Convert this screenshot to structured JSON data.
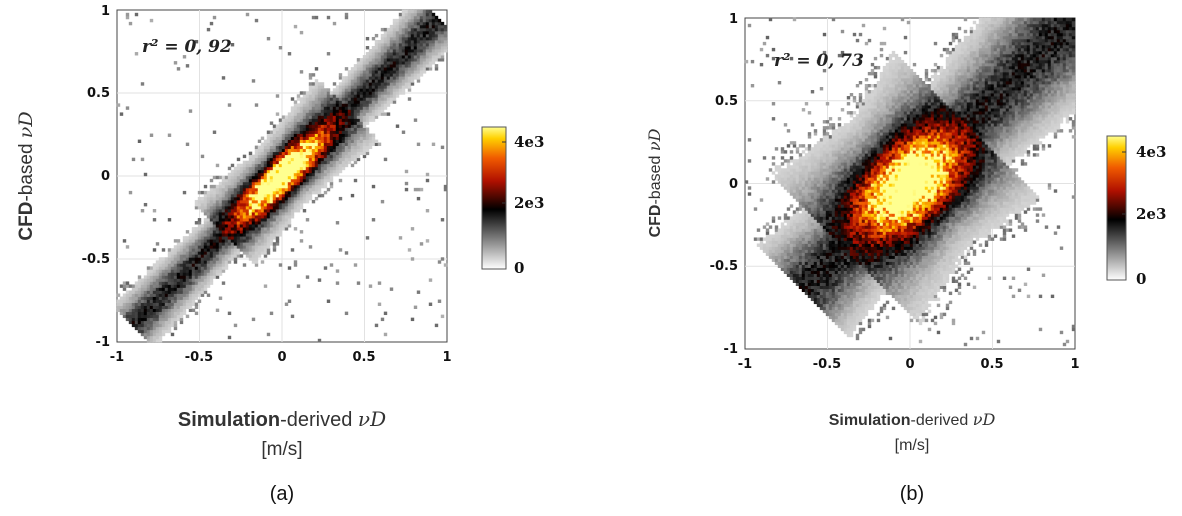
{
  "chart_data": [
    {
      "type": "heatmap",
      "panel_label": "(a)",
      "annotation": "r² = 0, 92",
      "r2": 0.92,
      "xlabel_bold": "Simulation",
      "xlabel_rest": "-derived ",
      "xlabel_symbol": "νD",
      "xlabel_unit": "[m/s]",
      "ylabel_bold": "CFD",
      "ylabel_rest": "-based ",
      "ylabel_symbol": "νD",
      "xlim": [
        -1,
        1
      ],
      "ylim": [
        -1,
        1
      ],
      "xticks": [
        "-1",
        "-0.5",
        "0",
        "0.5",
        "1"
      ],
      "yticks": [
        "-1",
        "-0.5",
        "0",
        "0.5",
        "1"
      ],
      "grid": true,
      "colorbar": {
        "min": 0,
        "max": 4500,
        "colormap": "white-black-red-yellow",
        "ticks": [
          "0",
          "2e3",
          "4e3"
        ]
      },
      "density": {
        "diagonal_extent": [
          -0.9,
          0.95
        ],
        "core_extent": [
          -0.35,
          0.4
        ],
        "spread": 0.05,
        "peak_location": [
          0.0,
          0.05
        ],
        "peak_count": 4500
      }
    },
    {
      "type": "heatmap",
      "panel_label": "(b)",
      "annotation": "r² = 0, 73",
      "r2": 0.73,
      "xlabel_bold": "Simulation",
      "xlabel_rest": "-derived ",
      "xlabel_symbol": "νD",
      "xlabel_unit": "[m/s]",
      "ylabel_bold": "CFD",
      "ylabel_rest": "-based ",
      "ylabel_symbol": "νD",
      "xlim": [
        -1,
        1
      ],
      "ylim": [
        -1,
        1
      ],
      "xticks": [
        "-1",
        "-0.5",
        "0",
        "0.5",
        "1"
      ],
      "yticks": [
        "-1",
        "-0.5",
        "0",
        "0.5",
        "1"
      ],
      "grid": true,
      "colorbar": {
        "min": 0,
        "max": 4500,
        "colormap": "white-black-red-yellow",
        "ticks": [
          "0",
          "2e3",
          "4e3"
        ]
      },
      "density": {
        "diagonal_extent": [
          -0.65,
          1.0
        ],
        "core_extent": [
          -0.4,
          0.35
        ],
        "spread": 0.12,
        "peak_location": [
          0.0,
          0.0
        ],
        "peak_count": 4500
      }
    }
  ]
}
